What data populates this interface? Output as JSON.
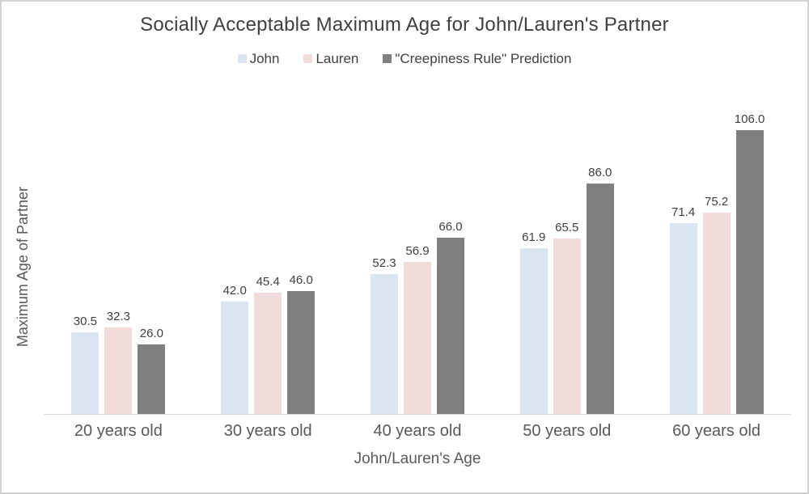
{
  "chart_data": {
    "type": "bar",
    "title": "Socially Acceptable Maximum Age for John/Lauren's Partner",
    "xlabel": "John/Lauren's Age",
    "ylabel": "Maximum Age of Partner",
    "categories": [
      "20 years old",
      "30 years old",
      "40 years old",
      "50 years old",
      "60 years old"
    ],
    "series": [
      {
        "name": "John",
        "color": "#dbe5f1",
        "values": [
          30.5,
          42.0,
          52.3,
          61.9,
          71.4
        ]
      },
      {
        "name": "Lauren",
        "color": "#f2dcdb",
        "values": [
          32.3,
          45.4,
          56.9,
          65.5,
          75.2
        ]
      },
      {
        "name": "\"Creepiness Rule\" Prediction",
        "color": "#7f7f7f",
        "values": [
          26.0,
          46.0,
          66.0,
          86.0,
          106.0
        ]
      }
    ],
    "ylim": [
      0,
      110
    ],
    "grid": false,
    "legend_position": "top",
    "value_decimals": 1,
    "axis_line_color": "#d9d9d9",
    "text_colors": {
      "title": "#404040",
      "data_label": "#404040",
      "axis": "#595959"
    }
  }
}
